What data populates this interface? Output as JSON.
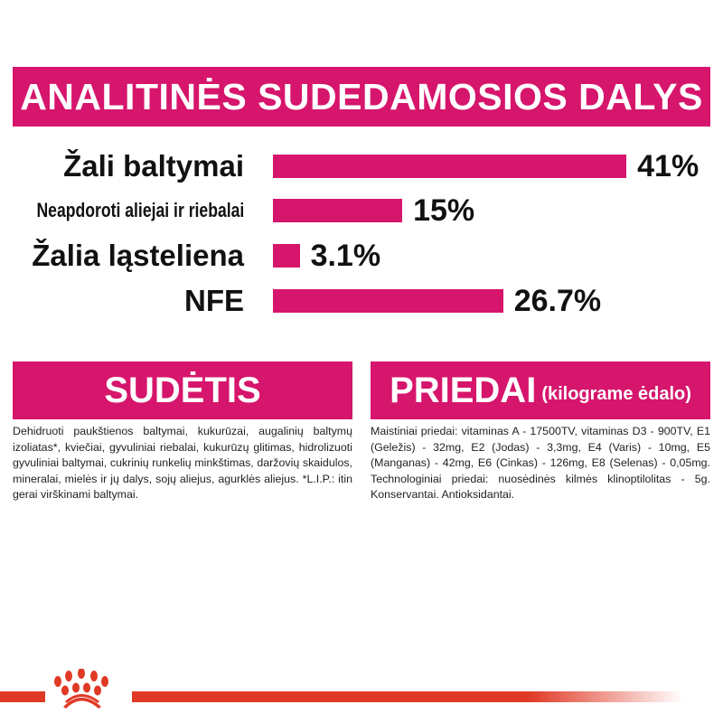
{
  "header": {
    "title": "ANALITINĖS SUDEDAMOSIOS DALYS"
  },
  "chart_data": {
    "type": "bar",
    "orientation": "horizontal",
    "categories": [
      "Žali baltymai",
      "Neapdoroti aliejai ir riebalai",
      "Žalia ląsteliena",
      "NFE"
    ],
    "values": [
      41,
      15,
      3.1,
      26.7
    ],
    "value_labels": [
      "41%",
      "15%",
      "3.1%",
      "26.7%"
    ],
    "unit": "%",
    "bar_color": "#d6156c",
    "grid": false
  },
  "composition": {
    "title": "SUDĖTIS",
    "text": "Dehidruoti paukštienos baltymai, kukurūzai, augalinių baltymų izoliatas*, kviečiai, gyvuliniai riebalai, kukurūzų glitimas, hidrolizuoti gyvuliniai baltymai, cukrinių runkelių minkštimas, daržovių skaidulos, mineralai, mielės ir jų dalys, sojų aliejus, agurklės aliejus. *L.I.P.: itin gerai virškinami baltymai."
  },
  "additives": {
    "title": "PRIEDAI",
    "subtitle": "(kilograme ėdalo)",
    "text": "Maistiniai priedai: vitaminas A - 17500TV, vitaminas D3 - 900TV, E1 (Geležis) - 32mg, E2 (Jodas) - 3,3mg, E4 (Varis) - 10mg, E5 (Manganas) - 42mg, E6 (Cinkas) - 126mg, E8 (Selenas) - 0,05mg. Technologiniai priedai: nuosėdinės kilmės klinoptilolitas - 5g. Konservantai. Antioksidantai."
  },
  "brand": {
    "logo": "crown-logo",
    "color": "#e03a26"
  }
}
